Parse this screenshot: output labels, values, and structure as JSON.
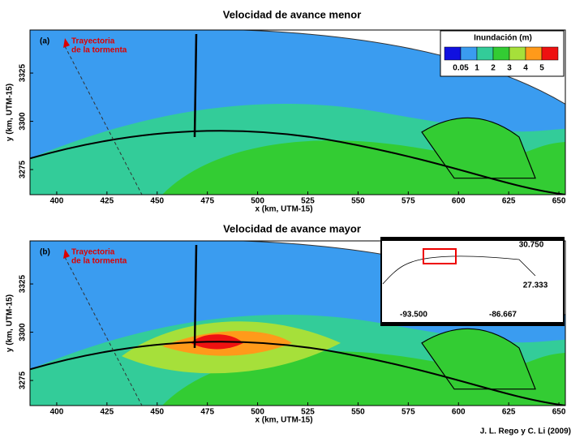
{
  "panels": [
    {
      "title": "Velocidad de avance menor",
      "label": "(a)",
      "annotation": [
        "Trayectoria",
        "de la tormenta"
      ],
      "xlabel": "x (km, UTM-15)",
      "ylabel": "y (km, UTM-15)",
      "xlim": [
        386.7,
        653.2
      ],
      "ylim": [
        3262,
        3347.3
      ],
      "xticks": [
        400,
        425,
        450,
        475,
        500,
        525,
        550,
        575,
        600,
        625,
        650
      ],
      "yticks": [
        3275,
        3300,
        3325
      ]
    },
    {
      "title": "Velocidad de avance mayor",
      "label": "(b)",
      "annotation": [
        "Trayectoria",
        "de la tormenta"
      ],
      "xlabel": "x (km, UTM-15)",
      "ylabel": "y (km, UTM-15)",
      "xlim": [
        386.7,
        653.2
      ],
      "ylim": [
        3262,
        3347.3
      ],
      "xticks": [
        400,
        425,
        450,
        475,
        500,
        525,
        550,
        575,
        600,
        625,
        650
      ],
      "yticks": [
        3275,
        3300,
        3325
      ]
    }
  ],
  "legend": {
    "title": "Inundación (m)",
    "ticks": [
      0.05,
      1,
      2,
      3,
      4,
      5
    ],
    "colors": [
      "#1010e0",
      "#3a9cf0",
      "#33cc99",
      "#33cc33",
      "#a6e03a",
      "#ff9a1a",
      "#ee1111"
    ]
  },
  "inset": {
    "lat_top": "30.750",
    "lat_bottom": "27.333",
    "lon_left": "-93.500",
    "lon_right": "-86.667"
  },
  "credit": "J. L. Rego y C. Li (2009)"
}
